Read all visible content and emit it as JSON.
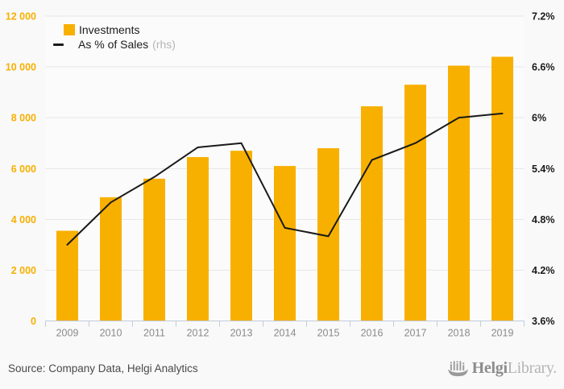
{
  "chart_data": {
    "type": "bar+line",
    "categories": [
      "2009",
      "2010",
      "2011",
      "2012",
      "2013",
      "2014",
      "2015",
      "2016",
      "2017",
      "2018",
      "2019"
    ],
    "series": [
      {
        "name": "Investments",
        "type": "bar",
        "axis": "left",
        "color": "#F8B000",
        "values": [
          3550,
          4870,
          5600,
          6450,
          6700,
          6100,
          6800,
          8450,
          9300,
          10050,
          10400
        ]
      },
      {
        "name": "As % of Sales",
        "axis_note": "(rhs)",
        "type": "line",
        "axis": "right",
        "color": "#1A1A1A",
        "values": [
          4.5,
          5.0,
          5.3,
          5.65,
          5.7,
          4.7,
          4.6,
          5.5,
          5.7,
          6.0,
          6.05
        ]
      }
    ],
    "left_axis": {
      "min": 0,
      "max": 12000,
      "step": 2000,
      "color": "#F8B000",
      "tick_labels": [
        "0",
        "2 000",
        "4 000",
        "6 000",
        "8 000",
        "10 000",
        "12 000"
      ]
    },
    "right_axis": {
      "min": 3.6,
      "max": 7.2,
      "step": 0.6,
      "color": "#1A1A1A",
      "tick_labels": [
        "3.6%",
        "4.2%",
        "4.8%",
        "5.4%",
        "6%",
        "6.6%",
        "7.2%"
      ]
    },
    "grid": true,
    "legend_position": "top-left",
    "title": "",
    "xlabel": "",
    "ylabel": ""
  },
  "footer": {
    "source": "Source: Company Data, Helgi Analytics",
    "logo": {
      "brand_bold": "Helgi",
      "brand_light": "Library."
    }
  }
}
